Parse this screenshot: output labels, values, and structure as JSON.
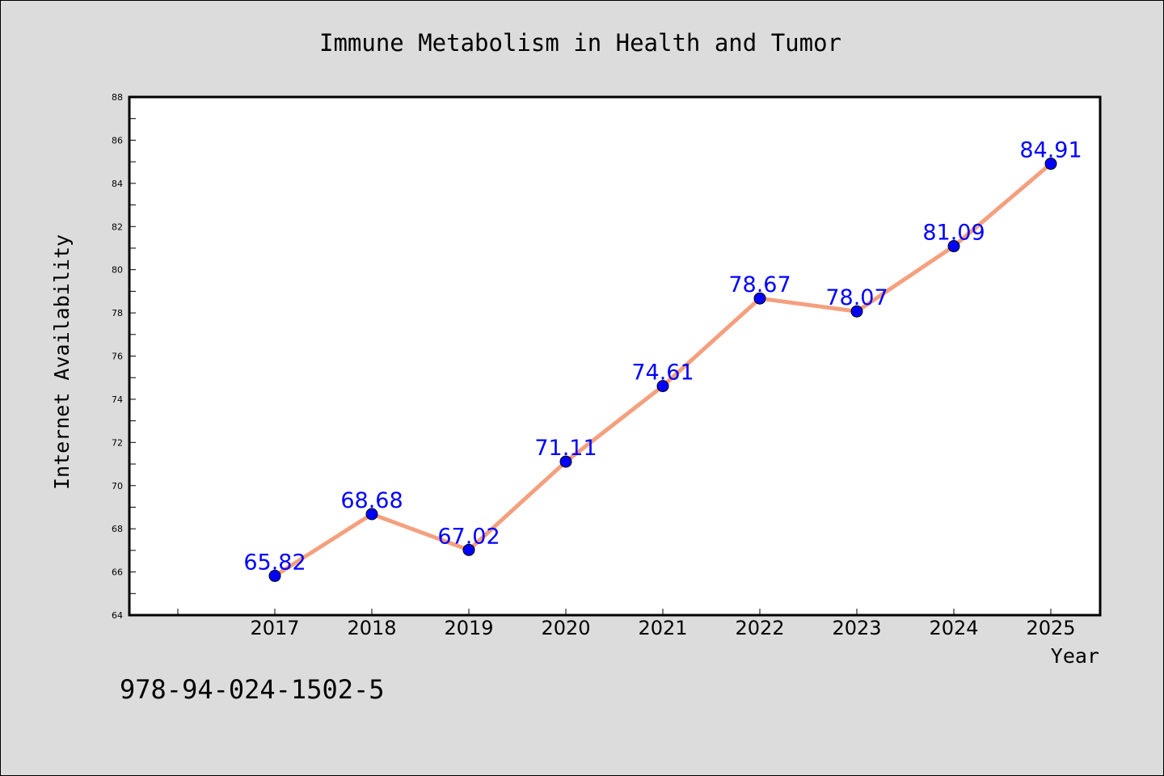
{
  "chart_data": {
    "type": "line",
    "title": "Immune Metabolism in Health and Tumor",
    "xlabel": "Year",
    "ylabel": "Internet Availability",
    "categories": [
      "2017",
      "2018",
      "2019",
      "2020",
      "2021",
      "2022",
      "2023",
      "2024",
      "2025"
    ],
    "values": [
      65.82,
      68.68,
      67.02,
      71.11,
      74.61,
      78.67,
      78.07,
      81.09,
      84.91
    ],
    "data_labels": [
      "65.82",
      "68.68",
      "67.02",
      "71.11",
      "74.61",
      "78.67",
      "78.07",
      "81.09",
      "84.91"
    ],
    "ylim": [
      64,
      88
    ],
    "y_ticks": [
      "64",
      "66",
      "68",
      "70",
      "72",
      "74",
      "76",
      "78",
      "80",
      "82",
      "84",
      "86",
      "88"
    ],
    "grid": false,
    "line_color": "#f4a07e",
    "marker_color": "#0000ff",
    "label_color": "#0000ff"
  },
  "footer_code": "978-94-024-1502-5"
}
